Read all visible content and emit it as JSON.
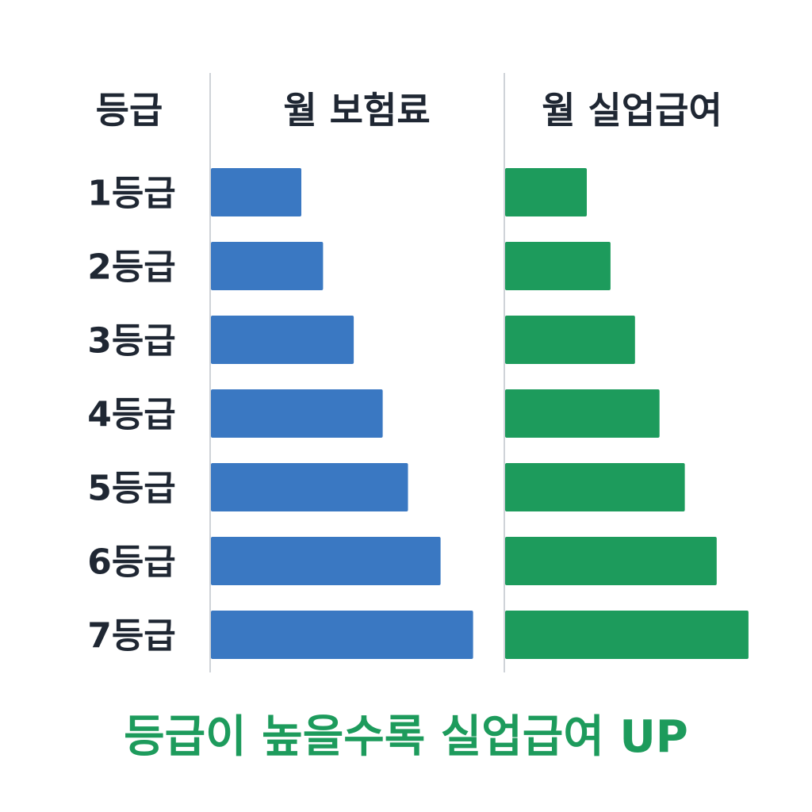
{
  "chart_data": {
    "type": "bar",
    "orientation": "horizontal",
    "headers": {
      "grade": "등급",
      "premium": "월 보험료",
      "benefit": "월 실업급여"
    },
    "categories": [
      "1등급",
      "2등급",
      "3등급",
      "4등급",
      "5등급",
      "6등급",
      "7등급"
    ],
    "series": [
      {
        "key": "premium",
        "values": [
          1,
          1.24,
          1.58,
          1.9,
          2.18,
          2.54,
          2.9
        ],
        "color": "#3a78c2"
      },
      {
        "key": "benefit",
        "values": [
          1,
          1.29,
          1.59,
          1.89,
          2.2,
          2.59,
          2.98
        ],
        "color": "#1d9b5c"
      }
    ],
    "caption": "등급이 높을수록 실업급여 UP",
    "caption_color": "#1d9b5c",
    "grid": false
  }
}
